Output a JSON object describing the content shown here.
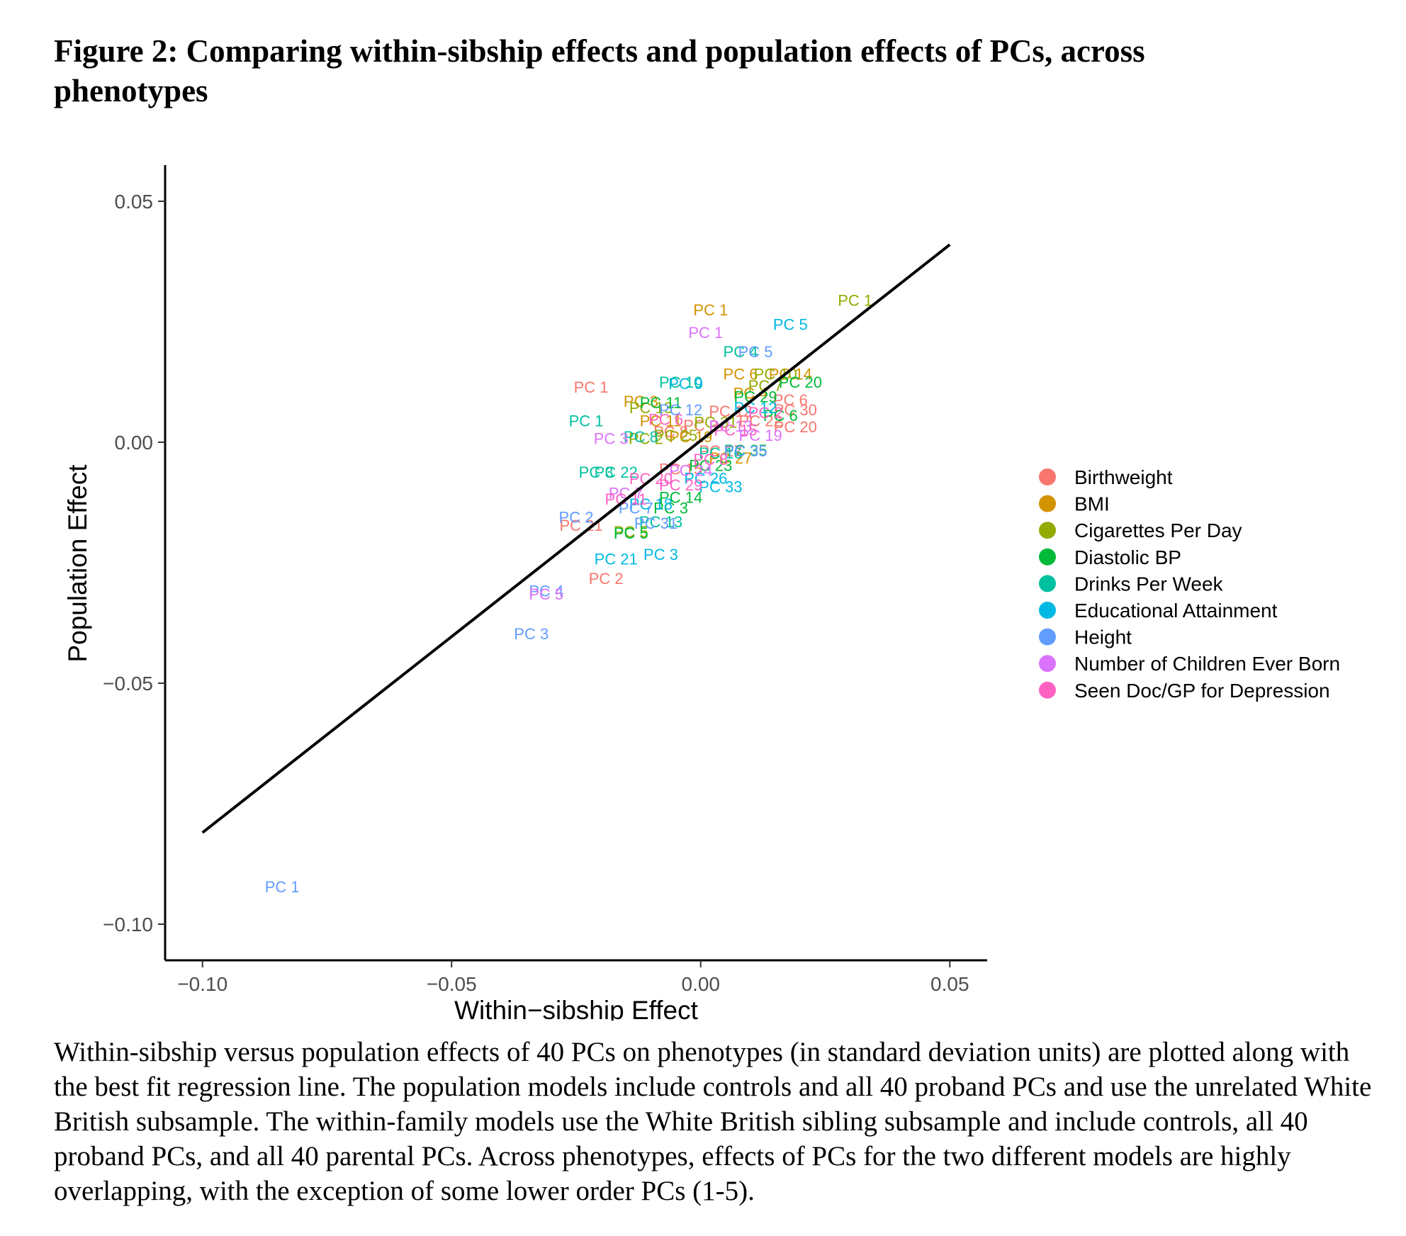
{
  "figure": {
    "title": "Figure 2: Comparing within-sibship effects and population effects of PCs, across phenotypes",
    "caption": "Within-sibship versus population effects of 40 PCs on phenotypes (in standard deviation units) are plotted along with the best fit regression line. The population models include controls and all 40 proband PCs and use the unrelated White British subsample. The within-family models use the White British sibling subsample and include controls, all 40 proband PCs, and all 40 parental PCs. Across phenotypes, effects of PCs for the two different models are highly overlapping, with the exception of some lower order PCs (1-5)."
  },
  "chart_data": {
    "type": "scatter",
    "xlabel": "Within−sibship Effect",
    "ylabel": "Population Effect",
    "xlim": [
      -0.1075,
      0.0575
    ],
    "ylim": [
      -0.1075,
      0.0575
    ],
    "xticks": [
      {
        "value": -0.1,
        "label": "−0.10"
      },
      {
        "value": -0.05,
        "label": "−0.05"
      },
      {
        "value": 0.0,
        "label": "0.00"
      },
      {
        "value": 0.05,
        "label": "0.05"
      }
    ],
    "yticks": [
      {
        "value": 0.05,
        "label": "0.05"
      },
      {
        "value": 0.0,
        "label": "0.00"
      },
      {
        "value": -0.05,
        "label": "−0.05"
      },
      {
        "value": -0.1,
        "label": "−0.10"
      }
    ],
    "fit_line": {
      "x": [
        -0.1,
        0.05
      ],
      "y": [
        -0.081,
        0.041
      ]
    },
    "legend_position": "right",
    "series": [
      {
        "name": "Birthweight",
        "color": "#F8766D",
        "points": [
          {
            "label": "PC 1",
            "x": -0.022,
            "y": 0.0115
          },
          {
            "label": "PC 2",
            "x": -0.019,
            "y": -0.0282
          },
          {
            "label": "PC 21",
            "x": -0.024,
            "y": -0.0172
          },
          {
            "label": "PC 20",
            "x": 0.019,
            "y": 0.0032
          },
          {
            "label": "PC 30",
            "x": 0.019,
            "y": 0.0068
          },
          {
            "label": "PC 6",
            "x": 0.018,
            "y": 0.0088
          },
          {
            "label": "PC 9",
            "x": 0.0,
            "y": 0.0035
          },
          {
            "label": "PC 12",
            "x": 0.006,
            "y": 0.0065
          },
          {
            "label": "PC 15",
            "x": -0.004,
            "y": -0.0055
          },
          {
            "label": "PC 22",
            "x": 0.012,
            "y": 0.0045
          },
          {
            "label": "PC 8",
            "x": -0.006,
            "y": 0.0022
          },
          {
            "label": "PC 17",
            "x": 0.004,
            "y": -0.0018
          }
        ]
      },
      {
        "name": "BMI",
        "color": "#D39200",
        "points": [
          {
            "label": "PC 1",
            "x": 0.002,
            "y": 0.0275
          },
          {
            "label": "PC 3",
            "x": -0.012,
            "y": 0.0085
          },
          {
            "label": "PC 14",
            "x": 0.018,
            "y": 0.0142
          },
          {
            "label": "PC 6",
            "x": 0.008,
            "y": 0.0142
          },
          {
            "label": "PC 11",
            "x": -0.008,
            "y": 0.0045
          },
          {
            "label": "PC 4",
            "x": 0.01,
            "y": 0.0102
          },
          {
            "label": "PC 19",
            "x": -0.002,
            "y": 0.0012
          },
          {
            "label": "PC 27",
            "x": 0.006,
            "y": -0.0032
          }
        ]
      },
      {
        "name": "Cigarettes Per Day",
        "color": "#93AA00",
        "points": [
          {
            "label": "PC 1",
            "x": 0.031,
            "y": 0.0295
          },
          {
            "label": "PC 5",
            "x": -0.014,
            "y": -0.0185
          },
          {
            "label": "PC 10",
            "x": 0.015,
            "y": 0.0142
          },
          {
            "label": "PC 13",
            "x": -0.01,
            "y": 0.0072
          },
          {
            "label": "PC 25",
            "x": -0.005,
            "y": 0.0015
          },
          {
            "label": "PC 7",
            "x": 0.013,
            "y": 0.0118
          },
          {
            "label": "PC 2",
            "x": -0.011,
            "y": 0.0008
          },
          {
            "label": "PC 31",
            "x": 0.003,
            "y": 0.0042
          }
        ]
      },
      {
        "name": "Diastolic BP",
        "color": "#00BA38",
        "points": [
          {
            "label": "PC 20",
            "x": 0.02,
            "y": 0.0125
          },
          {
            "label": "PC 5",
            "x": -0.014,
            "y": -0.0188
          },
          {
            "label": "PC 35",
            "x": 0.009,
            "y": -0.0016
          },
          {
            "label": "PC 14",
            "x": -0.004,
            "y": -0.0114
          },
          {
            "label": "PC 6",
            "x": 0.016,
            "y": 0.0056
          },
          {
            "label": "PC 3",
            "x": -0.006,
            "y": -0.0136
          },
          {
            "label": "PC 11",
            "x": -0.008,
            "y": 0.0082
          },
          {
            "label": "PC 23",
            "x": 0.002,
            "y": -0.0048
          },
          {
            "label": "PC 29",
            "x": 0.011,
            "y": 0.0095
          }
        ]
      },
      {
        "name": "Drinks Per Week",
        "color": "#00C19F",
        "points": [
          {
            "label": "PC 4",
            "x": 0.008,
            "y": 0.0188
          },
          {
            "label": "PC 3",
            "x": -0.021,
            "y": -0.0062
          },
          {
            "label": "PC 1",
            "x": -0.023,
            "y": 0.0045
          },
          {
            "label": "PC 13",
            "x": -0.008,
            "y": -0.0165
          },
          {
            "label": "PC 10",
            "x": -0.004,
            "y": 0.0125
          },
          {
            "label": "PC 22",
            "x": -0.017,
            "y": -0.0062
          },
          {
            "label": "PC 16",
            "x": 0.004,
            "y": -0.0022
          },
          {
            "label": "PC 8",
            "x": -0.012,
            "y": 0.0012
          }
        ]
      },
      {
        "name": "Educational Attainment",
        "color": "#00B9E3",
        "points": [
          {
            "label": "PC 5",
            "x": 0.018,
            "y": 0.0245
          },
          {
            "label": "PC 21",
            "x": -0.017,
            "y": -0.0242
          },
          {
            "label": "PC 3",
            "x": -0.008,
            "y": -0.0232
          },
          {
            "label": "PC 33",
            "x": 0.004,
            "y": -0.0092
          },
          {
            "label": "PC 9",
            "x": -0.003,
            "y": 0.0122
          },
          {
            "label": "PC 18",
            "x": -0.01,
            "y": -0.0128
          },
          {
            "label": "PC 26",
            "x": 0.001,
            "y": -0.0074
          },
          {
            "label": "PC 12",
            "x": 0.011,
            "y": 0.0072
          }
        ]
      },
      {
        "name": "Height",
        "color": "#619CFF",
        "points": [
          {
            "label": "PC 1",
            "x": -0.084,
            "y": -0.0922
          },
          {
            "label": "PC 3",
            "x": -0.034,
            "y": -0.0397
          },
          {
            "label": "PC 2",
            "x": -0.025,
            "y": -0.0155
          },
          {
            "label": "PC 4",
            "x": -0.031,
            "y": -0.0308
          },
          {
            "label": "PC 5",
            "x": 0.011,
            "y": 0.0188
          },
          {
            "label": "PC 35",
            "x": 0.009,
            "y": -0.0018
          },
          {
            "label": "PC 31",
            "x": -0.009,
            "y": -0.0168
          },
          {
            "label": "PC 7",
            "x": -0.013,
            "y": -0.0136
          },
          {
            "label": "PC 12",
            "x": -0.004,
            "y": 0.0068
          }
        ]
      },
      {
        "name": "Number of Children Ever Born",
        "color": "#DB72FB",
        "points": [
          {
            "label": "PC 1",
            "x": 0.001,
            "y": 0.0228
          },
          {
            "label": "PC 5",
            "x": -0.031,
            "y": -0.0315
          },
          {
            "label": "PC 19",
            "x": 0.012,
            "y": 0.0015
          },
          {
            "label": "PC 3",
            "x": -0.018,
            "y": 0.0008
          },
          {
            "label": "PC 7",
            "x": -0.015,
            "y": -0.0105
          },
          {
            "label": "PC 24",
            "x": -0.002,
            "y": -0.0058
          },
          {
            "label": "PC 13",
            "x": 0.006,
            "y": 0.0034
          }
        ]
      },
      {
        "name": "Seen Doc/GP for Depression",
        "color": "#FF61C3",
        "points": [
          {
            "label": "PC 6",
            "x": -0.007,
            "y": 0.0048
          },
          {
            "label": "PC 11",
            "x": -0.015,
            "y": -0.0118
          },
          {
            "label": "PC 20",
            "x": -0.01,
            "y": -0.0075
          },
          {
            "label": "PC 8",
            "x": 0.002,
            "y": -0.0035
          },
          {
            "label": "PC 15",
            "x": 0.007,
            "y": 0.0026
          },
          {
            "label": "PC 29",
            "x": -0.004,
            "y": -0.0088
          },
          {
            "label": "PC 2",
            "x": 0.013,
            "y": 0.0062
          }
        ]
      }
    ]
  }
}
